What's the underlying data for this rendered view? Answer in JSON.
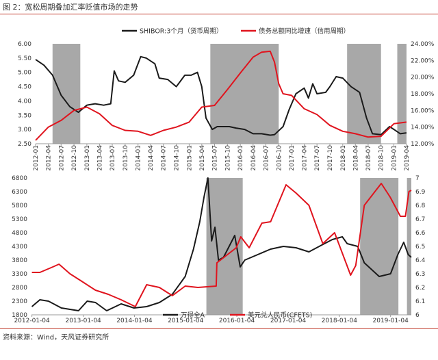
{
  "figure_title": "图 2：宽松周期叠加汇率贬值市场的走势",
  "source_note": "资料来源：Wind，天风证券研究所",
  "colors": {
    "black_series": "#1a1a1a",
    "red_series": "#e0141e",
    "shade": "#999999"
  },
  "chart_data": [
    {
      "type": "line",
      "legend": [
        {
          "name": "SHIBOR:3个月（货币周期）",
          "color": "#1a1a1a"
        },
        {
          "name": "债务总额同比增速（信用周期）",
          "color": "#e0141e"
        }
      ],
      "x_start": "2012-01-01",
      "x_end": "2019-04-01",
      "x_tick_labels": [
        "2012-01",
        "2012-04",
        "2012-07",
        "2012-10",
        "2013-01",
        "2013-04",
        "2013-07",
        "2013-10",
        "2014-01",
        "2014-04",
        "2014-07",
        "2014-10",
        "2015-01",
        "2015-04",
        "2015-07",
        "2015-10",
        "2016-01",
        "2016-04",
        "2016-07",
        "2016-10",
        "2017-01",
        "2017-04",
        "2017-07",
        "2017-10",
        "2018-01",
        "2018-04",
        "2018-07",
        "2018-10",
        "2019-01",
        "2019-04"
      ],
      "y_left_ticks": [
        "2.50",
        "3.00",
        "3.50",
        "4.00",
        "4.50",
        "5.00",
        "5.50",
        "6.00"
      ],
      "y_left_range": [
        2.5,
        6.0
      ],
      "y_right_ticks": [
        "12.00%",
        "14.00%",
        "16.00%",
        "18.00%",
        "20.00%",
        "22.00%",
        "24.00%"
      ],
      "y_right_range": [
        12.0,
        24.0
      ],
      "shaded_periods": [
        [
          "2012-05-01",
          "2012-11-15"
        ],
        [
          "2015-06-01",
          "2016-10-01"
        ],
        [
          "2018-02-01",
          "2018-10-01"
        ],
        [
          "2019-01-25",
          "2019-04-01"
        ]
      ],
      "series": [
        {
          "name": "SHIBOR:3个月（货币周期）",
          "axis": "left",
          "points": [
            [
              "2012-01-01",
              5.45
            ],
            [
              "2012-03-01",
              5.25
            ],
            [
              "2012-05-01",
              4.9
            ],
            [
              "2012-07-01",
              4.2
            ],
            [
              "2012-09-01",
              3.8
            ],
            [
              "2012-11-01",
              3.6
            ],
            [
              "2013-01-01",
              3.85
            ],
            [
              "2013-03-01",
              3.9
            ],
            [
              "2013-05-01",
              3.85
            ],
            [
              "2013-06-20",
              3.9
            ],
            [
              "2013-07-15",
              5.05
            ],
            [
              "2013-08-15",
              4.7
            ],
            [
              "2013-10-01",
              4.65
            ],
            [
              "2013-12-01",
              4.9
            ],
            [
              "2014-01-20",
              5.55
            ],
            [
              "2014-03-01",
              5.5
            ],
            [
              "2014-05-01",
              5.3
            ],
            [
              "2014-06-01",
              4.8
            ],
            [
              "2014-08-01",
              4.75
            ],
            [
              "2014-10-01",
              4.5
            ],
            [
              "2014-12-01",
              4.9
            ],
            [
              "2015-01-15",
              4.9
            ],
            [
              "2015-03-01",
              5.0
            ],
            [
              "2015-04-01",
              4.5
            ],
            [
              "2015-05-01",
              3.4
            ],
            [
              "2015-06-15",
              3.0
            ],
            [
              "2015-07-20",
              3.1
            ],
            [
              "2015-09-01",
              3.1
            ],
            [
              "2015-10-15",
              3.1
            ],
            [
              "2015-12-01",
              3.05
            ],
            [
              "2016-02-01",
              3.0
            ],
            [
              "2016-04-01",
              2.85
            ],
            [
              "2016-06-01",
              2.85
            ],
            [
              "2016-08-01",
              2.8
            ],
            [
              "2016-09-01",
              2.82
            ],
            [
              "2016-11-01",
              3.1
            ],
            [
              "2016-12-15",
              3.7
            ],
            [
              "2017-02-01",
              4.25
            ],
            [
              "2017-04-01",
              4.45
            ],
            [
              "2017-05-01",
              4.1
            ],
            [
              "2017-06-01",
              4.6
            ],
            [
              "2017-07-01",
              4.25
            ],
            [
              "2017-09-01",
              4.3
            ],
            [
              "2017-10-01",
              4.5
            ],
            [
              "2017-11-15",
              4.85
            ],
            [
              "2018-01-01",
              4.8
            ],
            [
              "2018-03-01",
              4.5
            ],
            [
              "2018-05-01",
              4.3
            ],
            [
              "2018-06-20",
              3.4
            ],
            [
              "2018-08-01",
              2.85
            ],
            [
              "2018-10-01",
              2.82
            ],
            [
              "2018-12-01",
              3.1
            ],
            [
              "2019-01-01",
              3.0
            ],
            [
              "2019-02-15",
              2.85
            ],
            [
              "2019-04-01",
              2.88
            ]
          ]
        },
        {
          "name": "债务总额同比增速（信用周期）",
          "axis": "right",
          "points": [
            [
              "2012-01-01",
              12.4
            ],
            [
              "2012-04-01",
              14.0
            ],
            [
              "2012-07-01",
              14.8
            ],
            [
              "2012-10-01",
              16.0
            ],
            [
              "2013-01-01",
              16.4
            ],
            [
              "2013-04-01",
              15.6
            ],
            [
              "2013-07-01",
              14.2
            ],
            [
              "2013-10-01",
              13.6
            ],
            [
              "2014-01-01",
              13.5
            ],
            [
              "2014-04-01",
              13.0
            ],
            [
              "2014-07-01",
              13.6
            ],
            [
              "2014-10-01",
              14.0
            ],
            [
              "2015-01-01",
              14.6
            ],
            [
              "2015-04-01",
              16.4
            ],
            [
              "2015-07-01",
              16.6
            ],
            [
              "2015-10-01",
              18.5
            ],
            [
              "2016-01-01",
              20.5
            ],
            [
              "2016-04-01",
              22.4
            ],
            [
              "2016-06-01",
              23.0
            ],
            [
              "2016-08-01",
              23.1
            ],
            [
              "2016-09-01",
              21.8
            ],
            [
              "2016-10-01",
              19.2
            ],
            [
              "2016-11-01",
              18.0
            ],
            [
              "2017-01-01",
              17.8
            ],
            [
              "2017-04-01",
              16.2
            ],
            [
              "2017-07-01",
              15.5
            ],
            [
              "2017-10-01",
              14.2
            ],
            [
              "2018-01-01",
              13.5
            ],
            [
              "2018-04-01",
              13.2
            ],
            [
              "2018-07-01",
              12.8
            ],
            [
              "2018-10-01",
              12.9
            ],
            [
              "2019-01-01",
              14.4
            ],
            [
              "2019-04-01",
              14.6
            ]
          ]
        }
      ]
    },
    {
      "type": "line",
      "legend": [
        {
          "name": "万得全A",
          "color": "#1a1a1a"
        },
        {
          "name": "美元兑人民币(CFETS)",
          "color": "#e0141e"
        }
      ],
      "x_start": "2012-01-01",
      "x_end": "2019-06-01",
      "x_tick_labels": [
        "2012-01-04",
        "2013-01-04",
        "2014-01-04",
        "2015-01-04",
        "2016-01-04",
        "2017-01-04",
        "2018-01-04",
        "2019-01-04"
      ],
      "y_left_ticks": [
        "1800",
        "2300",
        "2800",
        "3300",
        "3800",
        "4300",
        "4800",
        "5300",
        "5800",
        "6300",
        "6800"
      ],
      "y_left_range": [
        1800,
        6800
      ],
      "y_right_ticks": [
        "6",
        "6.1",
        "6.2",
        "6.3",
        "6.4",
        "6.5",
        "6.6",
        "6.7",
        "6.8",
        "6.9",
        "7"
      ],
      "y_right_range": [
        6.0,
        7.0
      ],
      "shaded_periods": [
        [
          "2015-06-01",
          "2016-02-15"
        ],
        [
          "2018-06-01",
          "2019-03-01"
        ],
        [
          "2019-05-01",
          "2019-06-01"
        ]
      ],
      "series": [
        {
          "name": "万得全A",
          "axis": "left",
          "points": [
            [
              "2012-01-04",
              2100
            ],
            [
              "2012-03-01",
              2350
            ],
            [
              "2012-05-01",
              2300
            ],
            [
              "2012-08-01",
              2050
            ],
            [
              "2012-12-01",
              1950
            ],
            [
              "2013-02-01",
              2300
            ],
            [
              "2013-04-01",
              2250
            ],
            [
              "2013-06-20",
              1950
            ],
            [
              "2013-10-01",
              2200
            ],
            [
              "2014-01-01",
              2050
            ],
            [
              "2014-04-01",
              2100
            ],
            [
              "2014-07-01",
              2250
            ],
            [
              "2014-10-01",
              2550
            ],
            [
              "2015-01-01",
              3200
            ],
            [
              "2015-03-01",
              4200
            ],
            [
              "2015-04-15",
              5200
            ],
            [
              "2015-05-15",
              6100
            ],
            [
              "2015-06-12",
              6800
            ],
            [
              "2015-07-08",
              4500
            ],
            [
              "2015-08-01",
              5000
            ],
            [
              "2015-08-26",
              3800
            ],
            [
              "2015-10-01",
              3900
            ],
            [
              "2015-12-20",
              4700
            ],
            [
              "2016-01-28",
              3550
            ],
            [
              "2016-03-01",
              3800
            ],
            [
              "2016-06-01",
              4000
            ],
            [
              "2016-09-01",
              4200
            ],
            [
              "2016-12-01",
              4300
            ],
            [
              "2017-03-01",
              4250
            ],
            [
              "2017-06-01",
              4100
            ],
            [
              "2017-09-01",
              4350
            ],
            [
              "2017-11-15",
              4550
            ],
            [
              "2018-01-25",
              4650
            ],
            [
              "2018-03-01",
              4400
            ],
            [
              "2018-05-15",
              4300
            ],
            [
              "2018-07-01",
              3700
            ],
            [
              "2018-10-15",
              3200
            ],
            [
              "2019-01-04",
              3300
            ],
            [
              "2019-02-25",
              4000
            ],
            [
              "2019-04-08",
              4450
            ],
            [
              "2019-05-10",
              4000
            ],
            [
              "2019-06-01",
              3900
            ]
          ]
        },
        {
          "name": "美元兑人民币(CFETS)",
          "axis": "right",
          "points": [
            [
              "2012-01-04",
              6.31
            ],
            [
              "2012-03-01",
              6.31
            ],
            [
              "2012-06-01",
              6.35
            ],
            [
              "2012-07-15",
              6.37
            ],
            [
              "2012-10-01",
              6.3
            ],
            [
              "2013-01-01",
              6.24
            ],
            [
              "2013-04-01",
              6.18
            ],
            [
              "2013-07-01",
              6.15
            ],
            [
              "2013-10-01",
              6.11
            ],
            [
              "2014-01-10",
              6.06
            ],
            [
              "2014-04-01",
              6.22
            ],
            [
              "2014-07-01",
              6.2
            ],
            [
              "2014-10-01",
              6.14
            ],
            [
              "2015-01-01",
              6.21
            ],
            [
              "2015-04-01",
              6.2
            ],
            [
              "2015-08-10",
              6.21
            ],
            [
              "2015-08-15",
              6.38
            ],
            [
              "2015-12-31",
              6.49
            ],
            [
              "2016-02-01",
              6.57
            ],
            [
              "2016-04-01",
              6.49
            ],
            [
              "2016-07-01",
              6.67
            ],
            [
              "2016-09-01",
              6.68
            ],
            [
              "2016-12-20",
              6.95
            ],
            [
              "2017-03-01",
              6.89
            ],
            [
              "2017-06-01",
              6.8
            ],
            [
              "2017-09-08",
              6.52
            ],
            [
              "2017-12-01",
              6.6
            ],
            [
              "2018-03-25",
              6.29
            ],
            [
              "2018-05-01",
              6.36
            ],
            [
              "2018-07-01",
              6.8
            ],
            [
              "2018-10-30",
              6.96
            ],
            [
              "2019-01-01",
              6.86
            ],
            [
              "2019-03-15",
              6.72
            ],
            [
              "2019-04-20",
              6.72
            ],
            [
              "2019-05-15",
              6.9
            ],
            [
              "2019-06-01",
              6.91
            ]
          ]
        }
      ]
    }
  ]
}
